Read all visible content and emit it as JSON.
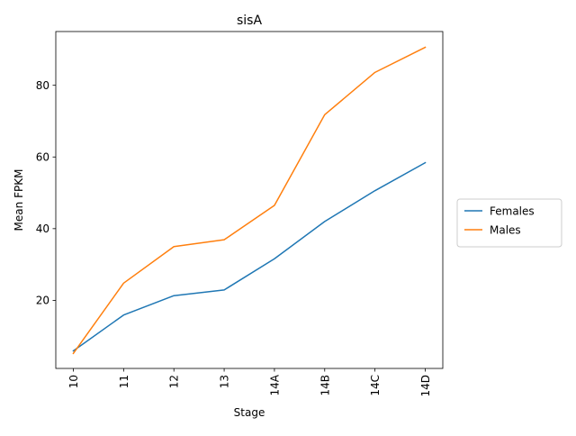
{
  "chart_data": {
    "type": "line",
    "title": "sisA",
    "xlabel": "Stage",
    "ylabel": "Mean FPKM",
    "categories": [
      "10",
      "11",
      "12",
      "13",
      "14A",
      "14B",
      "14C",
      "14D"
    ],
    "ylim": [
      1.0,
      95.0
    ],
    "yticks": [
      20,
      40,
      60,
      80
    ],
    "grid": false,
    "legend_position": "right",
    "series": [
      {
        "name": "Females",
        "color": "#1f77b4",
        "values": [
          5.9,
          15.9,
          21.3,
          22.9,
          31.6,
          42.0,
          50.6,
          58.4
        ]
      },
      {
        "name": "Males",
        "color": "#ff7f0e",
        "values": [
          5.2,
          24.8,
          35.0,
          36.9,
          46.5,
          71.8,
          83.6,
          90.6
        ]
      }
    ]
  }
}
